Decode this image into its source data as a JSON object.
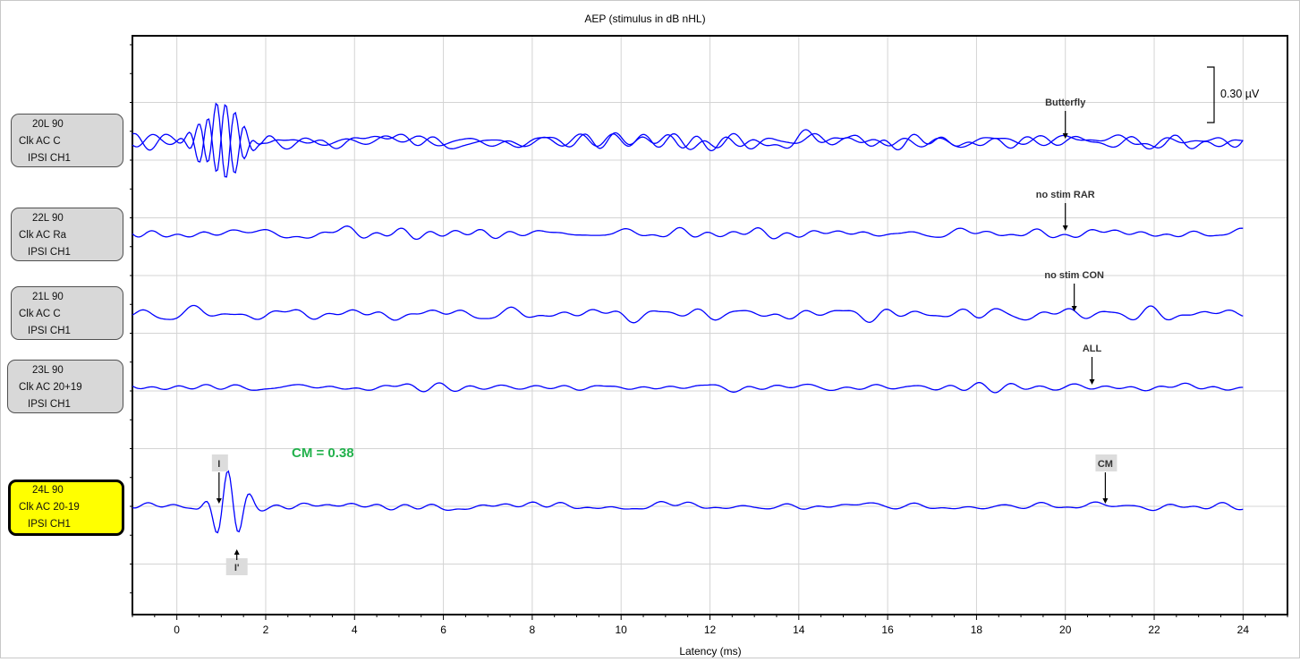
{
  "chart_data": {
    "type": "line",
    "title": "AEP (stimulus in dB nHL)",
    "xlabel": "Latency (ms)",
    "ylabel": "",
    "xlim": [
      -1,
      25
    ],
    "x_ticks": [
      "0",
      "2",
      "4",
      "6",
      "8",
      "10",
      "12",
      "14",
      "16",
      "18",
      "20",
      "22",
      "24"
    ],
    "grid": true,
    "scale_bar": "0.30 µV",
    "annotation_cm": "CM = 0.38",
    "annotation_color": "#22b14c",
    "trace_color": "#0000ff",
    "series": [
      {
        "label": [
          "20L 90",
          "Clk AC C",
          "IPSI CH1"
        ],
        "selected": false,
        "markers": [
          {
            "text": "Butterfly",
            "x": 20.0,
            "from": "above"
          }
        ]
      },
      {
        "label": [
          "22L 90",
          "Clk AC Ra",
          "IPSI CH1"
        ],
        "selected": false,
        "markers": [
          {
            "text": "no stim RAR",
            "x": 20.0,
            "from": "above"
          }
        ]
      },
      {
        "label": [
          "21L 90",
          "Clk AC C",
          "IPSI CH1"
        ],
        "selected": false,
        "markers": [
          {
            "text": "no stim CON",
            "x": 20.2,
            "from": "above"
          }
        ]
      },
      {
        "label": [
          "23L 90",
          "Clk AC 20+19",
          "IPSI CH1"
        ],
        "selected": false,
        "markers": [
          {
            "text": "ALL",
            "x": 20.6,
            "from": "above"
          }
        ]
      },
      {
        "label": [
          "24L 90",
          "Clk AC 20-19",
          "IPSI CH1"
        ],
        "selected": true,
        "markers": [
          {
            "text": "I",
            "x": 0.95,
            "from": "above",
            "boxed": true
          },
          {
            "text": "I'",
            "x": 1.35,
            "from": "below",
            "boxed": true
          },
          {
            "text": "CM",
            "x": 20.9,
            "from": "above",
            "boxed": true
          }
        ]
      }
    ]
  }
}
